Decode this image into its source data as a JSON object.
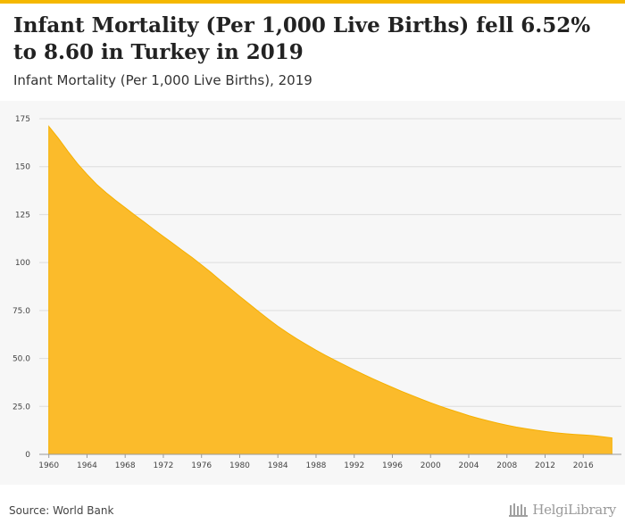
{
  "header": {
    "title": "Infant Mortality (Per 1,000 Live Births) fell 6.52% to 8.60 in Turkey in 2019",
    "subtitle": "Infant Mortality (Per 1,000 Live Births), 2019"
  },
  "footer": {
    "source": "Source: World Bank",
    "logo_text": "HelgiLibrary"
  },
  "colors": {
    "accent": "#f5b800",
    "area_fill": "#fbbb2b",
    "grid": "#dddddd"
  },
  "chart_data": {
    "type": "area",
    "title": "Infant Mortality (Per 1,000 Live Births) fell 6.52% to 8.60 in Turkey in 2019",
    "subtitle": "Infant Mortality (Per 1,000 Live Births), 2019",
    "xlabel": "",
    "ylabel": "",
    "ylim": [
      0,
      175
    ],
    "y_ticks": [
      0,
      25,
      50,
      75,
      100,
      125,
      150,
      175
    ],
    "y_tick_labels": [
      "0",
      "25.0",
      "50.0",
      "75.0",
      "100",
      "125",
      "150",
      "175"
    ],
    "x_ticks": [
      "1960",
      "1964",
      "1968",
      "1972",
      "1976",
      "1980",
      "1984",
      "1988",
      "1992",
      "1996",
      "2000",
      "2004",
      "2008",
      "2012",
      "2016"
    ],
    "grid": true,
    "legend": "none",
    "series": [
      {
        "x": [
          1960,
          1961,
          1962,
          1963,
          1964,
          1965,
          1966,
          1967,
          1968,
          1969,
          1970,
          1971,
          1972,
          1973,
          1974,
          1975,
          1976,
          1977,
          1978,
          1979,
          1980,
          1981,
          1982,
          1983,
          1984,
          1985,
          1986,
          1987,
          1988,
          1989,
          1990,
          1991,
          1992,
          1993,
          1994,
          1995,
          1996,
          1997,
          1998,
          1999,
          2000,
          2001,
          2002,
          2003,
          2004,
          2005,
          2006,
          2007,
          2008,
          2009,
          2010,
          2011,
          2012,
          2013,
          2014,
          2015,
          2016,
          2017,
          2018,
          2019
        ],
        "values": [
          171.0,
          164.8,
          158.0,
          151.6,
          146.0,
          140.8,
          136.4,
          132.4,
          128.6,
          124.8,
          121.1,
          117.3,
          113.6,
          110.0,
          106.3,
          102.7,
          98.8,
          94.8,
          90.6,
          86.5,
          82.4,
          78.4,
          74.4,
          70.5,
          66.8,
          63.4,
          60.2,
          57.2,
          54.3,
          51.6,
          49.0,
          46.5,
          44.0,
          41.6,
          39.3,
          37.1,
          34.9,
          32.8,
          30.8,
          28.8,
          26.9,
          25.1,
          23.4,
          21.8,
          20.2,
          18.8,
          17.5,
          16.3,
          15.2,
          14.2,
          13.4,
          12.6,
          11.9,
          11.3,
          10.8,
          10.4,
          10.1,
          9.8,
          9.2,
          8.6
        ]
      }
    ]
  }
}
